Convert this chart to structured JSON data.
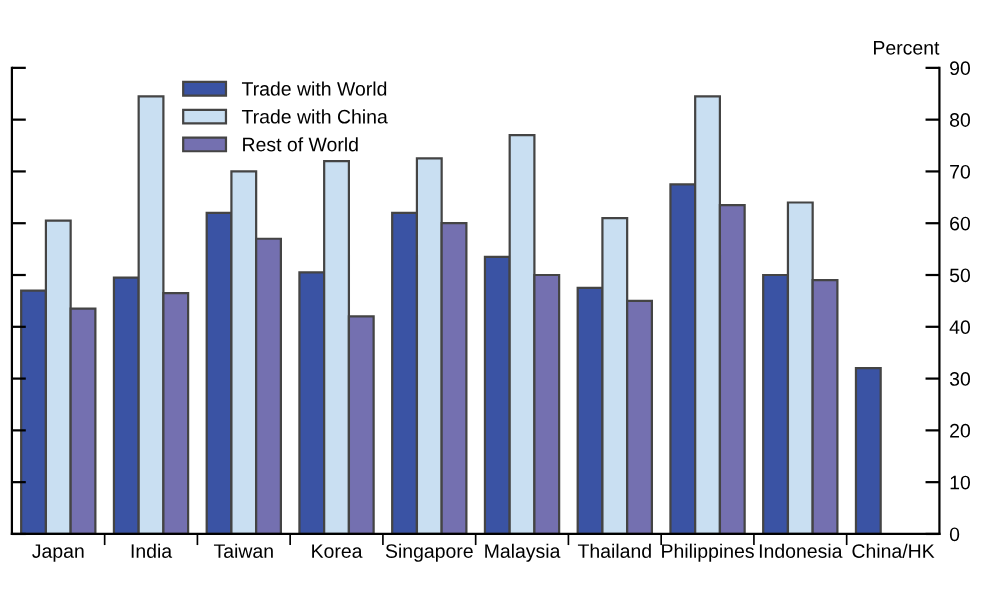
{
  "chart_data": {
    "type": "bar",
    "ylabel": "Percent",
    "categories": [
      "Japan",
      "India",
      "Taiwan",
      "Korea",
      "Singapore",
      "Malaysia",
      "Thailand",
      "Philippines",
      "Indonesia",
      "China/HK"
    ],
    "series": [
      {
        "name": "Trade with World",
        "color": "#3a53a4",
        "values": [
          47,
          49.5,
          62,
          50.5,
          62,
          53.5,
          47.5,
          67.5,
          50,
          32
        ]
      },
      {
        "name": "Trade with China",
        "color": "#c9dff2",
        "values": [
          60.5,
          84.5,
          70,
          72,
          72.5,
          77,
          61,
          84.5,
          64,
          null
        ]
      },
      {
        "name": "Rest of World",
        "color": "#7470b0",
        "values": [
          43.5,
          46.5,
          57,
          42,
          60,
          50,
          45,
          63.5,
          49,
          null
        ]
      }
    ],
    "ylim": [
      0,
      90
    ],
    "yticks": [
      0,
      10,
      20,
      30,
      40,
      50,
      60,
      70,
      80,
      90
    ],
    "grid": false,
    "legend": "top"
  }
}
